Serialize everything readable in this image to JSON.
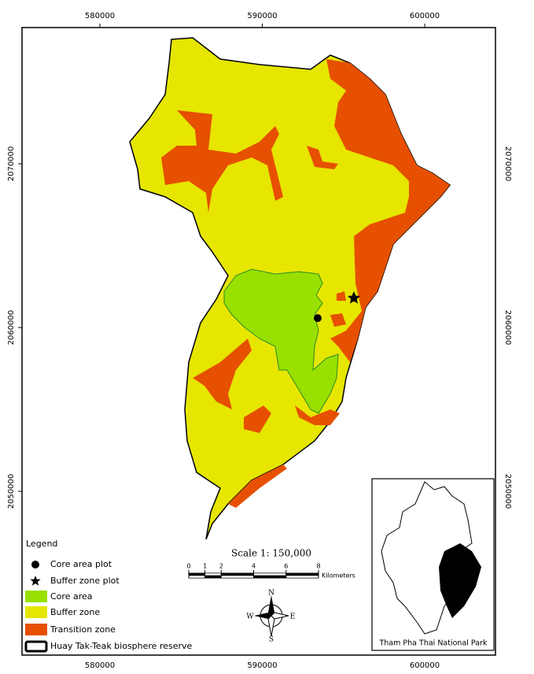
{
  "map": {
    "x_labels": [
      580000,
      590000,
      600000
    ],
    "y_labels": [
      2070000,
      2060000,
      2050000
    ],
    "legend": {
      "title": "Legend",
      "items": [
        {
          "label": "Core area plot",
          "symbol": "circle"
        },
        {
          "label": "Buffer zone plot",
          "symbol": "star"
        },
        {
          "label": "Core area",
          "symbol": "box",
          "color": "#99e000"
        },
        {
          "label": "Buffer zone",
          "symbol": "box",
          "color": "#e6e600"
        },
        {
          "label": "Transition zone",
          "symbol": "box",
          "color": "#e65000"
        },
        {
          "label": "Huay Tak-Teak biosphere reserve",
          "symbol": "outline"
        }
      ]
    },
    "scale": {
      "title": "Scale 1: 150,000",
      "ticks": [
        0,
        1,
        2,
        4,
        6,
        8
      ],
      "unit": "Kilometers"
    },
    "north_arrow": {
      "n": "N",
      "s": "S",
      "e": "E",
      "w": "W"
    },
    "inset": {
      "caption": "Tham Pha Thai National Park"
    }
  }
}
